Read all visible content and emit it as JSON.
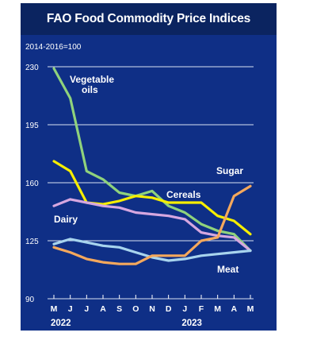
{
  "chart_data": {
    "type": "line",
    "title": "FAO Food Commodity Price Indices",
    "subtitle": "2014-2016=100",
    "months": [
      "M",
      "J",
      "J",
      "A",
      "S",
      "O",
      "N",
      "D",
      "J",
      "F",
      "M",
      "A",
      "M"
    ],
    "years": [
      {
        "label": "2022",
        "month_index": 0
      },
      {
        "label": "2023",
        "month_index": 8
      }
    ],
    "ylim": [
      90,
      230
    ],
    "yticks": [
      90,
      125,
      160,
      195,
      230
    ],
    "grid": true,
    "series": [
      {
        "name": "Vegetable oils",
        "color": "#8fd27c",
        "values": [
          229,
          211,
          167,
          162,
          154,
          152,
          155,
          146,
          142,
          135,
          131,
          129,
          119
        ]
      },
      {
        "name": "Cereals",
        "color": "#f6ee00",
        "values": [
          173,
          167,
          148,
          147,
          149,
          152,
          151,
          148,
          148,
          148,
          140,
          137,
          129
        ]
      },
      {
        "name": "Dairy",
        "color": "#d6a7e0",
        "values": [
          146,
          150,
          148,
          146,
          145,
          142,
          141,
          140,
          138,
          130,
          128,
          127,
          119
        ]
      },
      {
        "name": "Meat",
        "color": "#a8d4ee",
        "values": [
          123,
          126,
          124,
          122,
          121,
          118,
          115,
          113,
          114,
          116,
          117,
          118,
          119
        ]
      },
      {
        "name": "Sugar",
        "color": "#f5a85c",
        "values": [
          121,
          118,
          114,
          112,
          111,
          111,
          116,
          116,
          116,
          125,
          127,
          152,
          158
        ]
      }
    ],
    "labels": {
      "veg_line1": "Vegetable",
      "veg_line2": "oils",
      "cereals": "Cereals",
      "dairy": "Dairy",
      "meat": "Meat",
      "sugar": "Sugar"
    }
  }
}
